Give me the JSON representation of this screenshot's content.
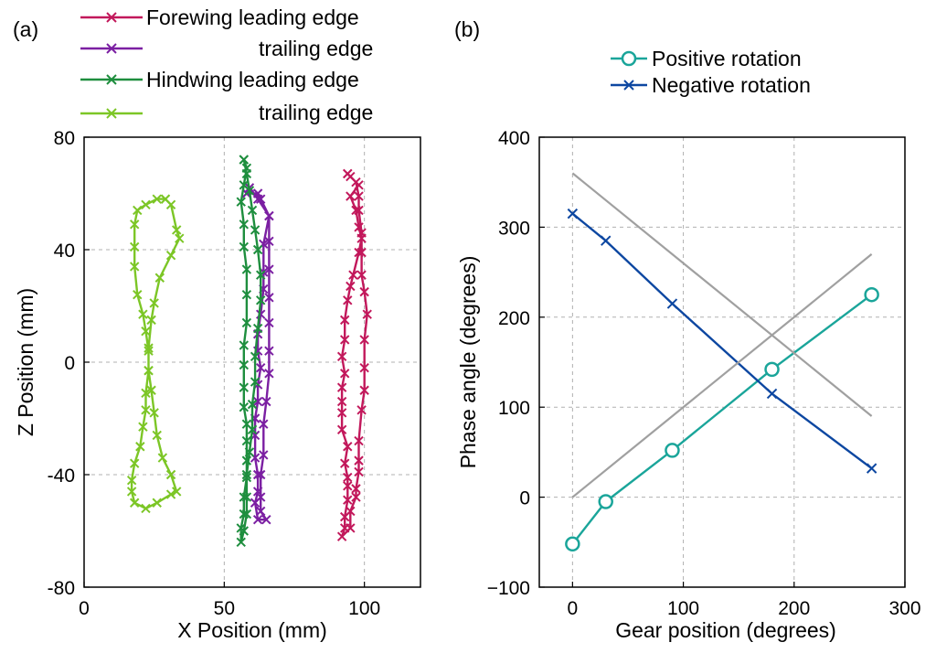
{
  "chart_data": [
    {
      "panel_label": "(a)",
      "type": "line",
      "xlabel": "X Position (mm)",
      "ylabel": "Z Position (mm)",
      "xlim": [
        0,
        120
      ],
      "ylim": [
        -80,
        80
      ],
      "xticks": [
        0,
        50,
        100
      ],
      "yticks": [
        80,
        40,
        0,
        -40,
        -80
      ],
      "grid": "dashed-inner",
      "legend_position": "top",
      "series": [
        {
          "name": "Forewing leading edge",
          "label": "Forewing leading edge",
          "color": "#c2185b",
          "marker": "x",
          "points": [
            [
              94,
              67
            ],
            [
              98,
              63
            ],
            [
              95,
              59
            ],
            [
              97,
              54
            ],
            [
              98,
              48
            ],
            [
              99,
              44
            ],
            [
              98,
              39
            ],
            [
              96,
              31
            ],
            [
              95,
              27
            ],
            [
              94,
              22
            ],
            [
              93,
              15
            ],
            [
              93,
              8
            ],
            [
              92,
              2
            ],
            [
              93,
              -4
            ],
            [
              92,
              -9
            ],
            [
              92,
              -14
            ],
            [
              92,
              -18
            ],
            [
              92,
              -24
            ],
            [
              94,
              -30
            ],
            [
              93,
              -36
            ],
            [
              94,
              -41
            ],
            [
              94,
              -44
            ],
            [
              94,
              -49
            ],
            [
              93,
              -55
            ],
            [
              93,
              -59
            ],
            [
              92,
              -62
            ],
            [
              95,
              -59
            ],
            [
              95,
              -53
            ],
            [
              97,
              -48
            ],
            [
              97,
              -45
            ],
            [
              98,
              -39
            ],
            [
              98,
              -35
            ],
            [
              98,
              -28
            ],
            [
              99,
              -17
            ],
            [
              100,
              -10
            ],
            [
              100,
              -2
            ],
            [
              100,
              8
            ],
            [
              101,
              17
            ],
            [
              100,
              25
            ],
            [
              99,
              31
            ],
            [
              99,
              39
            ],
            [
              99,
              46
            ],
            [
              98,
              54
            ],
            [
              98,
              59
            ],
            [
              97,
              64
            ],
            [
              95,
              66
            ],
            [
              94,
              67
            ]
          ]
        },
        {
          "name": "Forewing trailing edge",
          "label": "trailing edge",
          "color": "#7b1fa2",
          "marker": "x",
          "points": [
            [
              58,
              60
            ],
            [
              62,
              60
            ],
            [
              63,
              58
            ],
            [
              66,
              52
            ],
            [
              64,
              42
            ],
            [
              64,
              32
            ],
            [
              64,
              26
            ],
            [
              63,
              17
            ],
            [
              62,
              10
            ],
            [
              62,
              4
            ],
            [
              63,
              -2
            ],
            [
              62,
              -8
            ],
            [
              62,
              -14
            ],
            [
              61,
              -20
            ],
            [
              61,
              -26
            ],
            [
              61,
              -34
            ],
            [
              62,
              -40
            ],
            [
              62,
              -46
            ],
            [
              61,
              -50
            ],
            [
              62,
              -56
            ],
            [
              65,
              -56
            ],
            [
              63,
              -53
            ],
            [
              63,
              -48
            ],
            [
              63,
              -40
            ],
            [
              64,
              -33
            ],
            [
              64,
              -22
            ],
            [
              65,
              -14
            ],
            [
              66,
              -4
            ],
            [
              66,
              4
            ],
            [
              66,
              14
            ],
            [
              66,
              23
            ],
            [
              66,
              33
            ],
            [
              66,
              43
            ],
            [
              66,
              52
            ],
            [
              62,
              58
            ],
            [
              59,
              62
            ],
            [
              58,
              60
            ]
          ]
        },
        {
          "name": "Hindwing leading edge",
          "label": "Hindwing leading edge",
          "color": "#1e8e3e",
          "marker": "x",
          "points": [
            [
              57,
              72
            ],
            [
              58,
              69
            ],
            [
              57,
              63
            ],
            [
              56,
              57
            ],
            [
              57,
              49
            ],
            [
              57,
              41
            ],
            [
              58,
              33
            ],
            [
              58,
              24
            ],
            [
              58,
              14
            ],
            [
              57,
              6
            ],
            [
              57,
              -1
            ],
            [
              57,
              -9
            ],
            [
              57,
              -16
            ],
            [
              58,
              -22
            ],
            [
              58,
              -28
            ],
            [
              58,
              -35
            ],
            [
              58,
              -41
            ],
            [
              57,
              -48
            ],
            [
              57,
              -54
            ],
            [
              56,
              -59
            ],
            [
              56,
              -64
            ],
            [
              57,
              -60
            ],
            [
              58,
              -54
            ],
            [
              58,
              -48
            ],
            [
              58,
              -40
            ],
            [
              59,
              -32
            ],
            [
              60,
              -24
            ],
            [
              60,
              -15
            ],
            [
              61,
              -7
            ],
            [
              61,
              2
            ],
            [
              62,
              12
            ],
            [
              63,
              22
            ],
            [
              63,
              31
            ],
            [
              62,
              40
            ],
            [
              61,
              47
            ],
            [
              60,
              54
            ],
            [
              59,
              61
            ],
            [
              58,
              67
            ],
            [
              57,
              72
            ]
          ]
        },
        {
          "name": "Hindwing trailing edge",
          "label": "trailing edge",
          "color": "#7cc626",
          "marker": "x",
          "points": [
            [
              29,
              58
            ],
            [
              31,
              56
            ],
            [
              33,
              47
            ],
            [
              34,
              44
            ],
            [
              31,
              38
            ],
            [
              27,
              30
            ],
            [
              25,
              21
            ],
            [
              24,
              15
            ],
            [
              23,
              5
            ],
            [
              23,
              -3
            ],
            [
              22,
              -11
            ],
            [
              22,
              -17
            ],
            [
              21,
              -23
            ],
            [
              20,
              -30
            ],
            [
              18,
              -36
            ],
            [
              17,
              -42
            ],
            [
              17,
              -46
            ],
            [
              18,
              -50
            ],
            [
              22,
              -52
            ],
            [
              26,
              -50
            ],
            [
              31,
              -47
            ],
            [
              33,
              -46
            ],
            [
              31,
              -40
            ],
            [
              28,
              -34
            ],
            [
              26,
              -26
            ],
            [
              25,
              -18
            ],
            [
              24,
              -10
            ],
            [
              23,
              -3
            ],
            [
              23,
              4
            ],
            [
              22,
              11
            ],
            [
              21,
              17
            ],
            [
              19,
              24
            ],
            [
              18,
              34
            ],
            [
              18,
              41
            ],
            [
              18,
              49
            ],
            [
              19,
              54
            ],
            [
              22,
              56
            ],
            [
              26,
              58
            ],
            [
              29,
              58
            ]
          ]
        }
      ]
    },
    {
      "panel_label": "(b)",
      "type": "line",
      "xlabel": "Gear position (degrees)",
      "ylabel": "Phase angle (degrees)",
      "xlim": [
        -30,
        300
      ],
      "ylim": [
        -100,
        400
      ],
      "xticks": [
        0,
        100,
        200,
        300
      ],
      "yticks": [
        400,
        300,
        200,
        100,
        0,
        -100
      ],
      "grid": "dashed-inner",
      "legend_position": "top",
      "series": [
        {
          "name": "Positive rotation",
          "color": "#1aa59a",
          "marker": "o",
          "x": [
            0,
            30,
            90,
            180,
            270
          ],
          "y": [
            -52,
            -5,
            52,
            142,
            225
          ]
        },
        {
          "name": "Negative rotation",
          "color": "#0d47a1",
          "marker": "x",
          "x": [
            0,
            30,
            90,
            180,
            270
          ],
          "y": [
            315,
            285,
            215,
            115,
            32
          ]
        },
        {
          "name": "reference-increasing",
          "color": "#a0a0a0",
          "marker": "none",
          "x": [
            0,
            270
          ],
          "y": [
            0,
            270
          ]
        },
        {
          "name": "reference-decreasing",
          "color": "#a0a0a0",
          "marker": "none",
          "x": [
            0,
            270
          ],
          "y": [
            360,
            90
          ]
        }
      ]
    }
  ]
}
